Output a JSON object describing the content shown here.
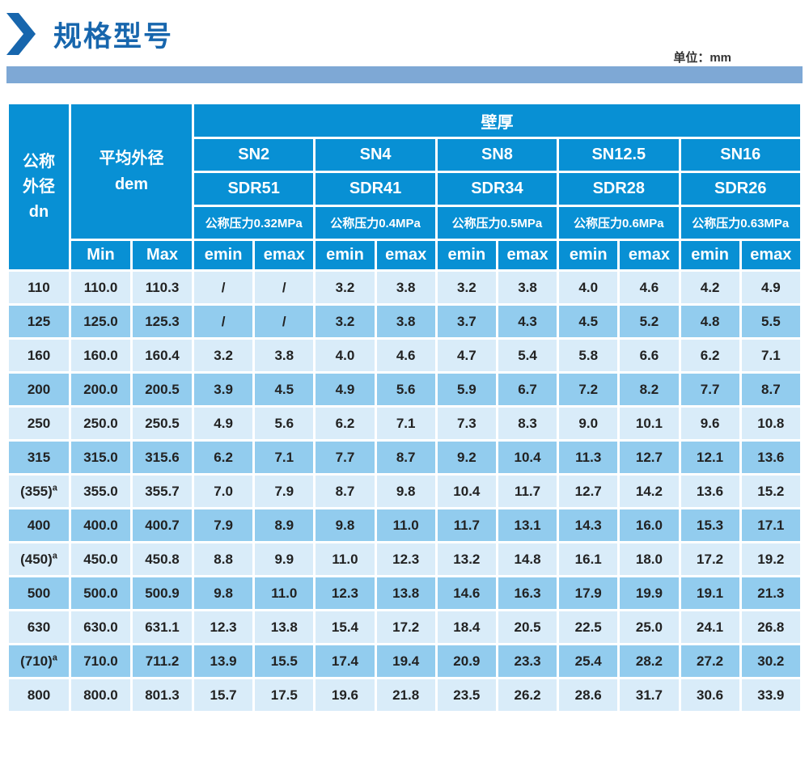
{
  "page": {
    "title": "规格型号",
    "unit_label": "单位：mm"
  },
  "colors": {
    "title_blue": "#1766ad",
    "bar_blue": "#7ea8d5",
    "header_blue": "#0890d4",
    "row_light": "#d9ecf9",
    "row_dark": "#92ccee"
  },
  "table": {
    "header": {
      "dn_lines": [
        "公称",
        "外径",
        "dn"
      ],
      "avg_lines": [
        "平均外径",
        "dem"
      ],
      "wall": "壁厚",
      "min": "Min",
      "max": "Max",
      "emin": "emin",
      "emax": "emax",
      "groups": [
        {
          "sn": "SN2",
          "sdr": "SDR51",
          "pressure": "公称压力0.32MPa"
        },
        {
          "sn": "SN4",
          "sdr": "SDR41",
          "pressure": "公称压力0.4MPa"
        },
        {
          "sn": "SN8",
          "sdr": "SDR34",
          "pressure": "公称压力0.5MPa"
        },
        {
          "sn": "SN12.5",
          "sdr": "SDR28",
          "pressure": "公称压力0.6MPa"
        },
        {
          "sn": "SN16",
          "sdr": "SDR26",
          "pressure": "公称压力0.63MPa"
        }
      ]
    },
    "rows": [
      {
        "dn": "110",
        "sup": "",
        "min": "110.0",
        "max": "110.3",
        "values": [
          "/",
          "/",
          "3.2",
          "3.8",
          "3.2",
          "3.8",
          "4.0",
          "4.6",
          "4.2",
          "4.9"
        ]
      },
      {
        "dn": "125",
        "sup": "",
        "min": "125.0",
        "max": "125.3",
        "values": [
          "/",
          "/",
          "3.2",
          "3.8",
          "3.7",
          "4.3",
          "4.5",
          "5.2",
          "4.8",
          "5.5"
        ]
      },
      {
        "dn": "160",
        "sup": "",
        "min": "160.0",
        "max": "160.4",
        "values": [
          "3.2",
          "3.8",
          "4.0",
          "4.6",
          "4.7",
          "5.4",
          "5.8",
          "6.6",
          "6.2",
          "7.1"
        ]
      },
      {
        "dn": "200",
        "sup": "",
        "min": "200.0",
        "max": "200.5",
        "values": [
          "3.9",
          "4.5",
          "4.9",
          "5.6",
          "5.9",
          "6.7",
          "7.2",
          "8.2",
          "7.7",
          "8.7"
        ]
      },
      {
        "dn": "250",
        "sup": "",
        "min": "250.0",
        "max": "250.5",
        "values": [
          "4.9",
          "5.6",
          "6.2",
          "7.1",
          "7.3",
          "8.3",
          "9.0",
          "10.1",
          "9.6",
          "10.8"
        ]
      },
      {
        "dn": "315",
        "sup": "",
        "min": "315.0",
        "max": "315.6",
        "values": [
          "6.2",
          "7.1",
          "7.7",
          "8.7",
          "9.2",
          "10.4",
          "11.3",
          "12.7",
          "12.1",
          "13.6"
        ]
      },
      {
        "dn": "(355)",
        "sup": "a",
        "min": "355.0",
        "max": "355.7",
        "values": [
          "7.0",
          "7.9",
          "8.7",
          "9.8",
          "10.4",
          "11.7",
          "12.7",
          "14.2",
          "13.6",
          "15.2"
        ]
      },
      {
        "dn": "400",
        "sup": "",
        "min": "400.0",
        "max": "400.7",
        "values": [
          "7.9",
          "8.9",
          "9.8",
          "11.0",
          "11.7",
          "13.1",
          "14.3",
          "16.0",
          "15.3",
          "17.1"
        ]
      },
      {
        "dn": "(450)",
        "sup": "a",
        "min": "450.0",
        "max": "450.8",
        "values": [
          "8.8",
          "9.9",
          "11.0",
          "12.3",
          "13.2",
          "14.8",
          "16.1",
          "18.0",
          "17.2",
          "19.2"
        ]
      },
      {
        "dn": "500",
        "sup": "",
        "min": "500.0",
        "max": "500.9",
        "values": [
          "9.8",
          "11.0",
          "12.3",
          "13.8",
          "14.6",
          "16.3",
          "17.9",
          "19.9",
          "19.1",
          "21.3"
        ]
      },
      {
        "dn": "630",
        "sup": "",
        "min": "630.0",
        "max": "631.1",
        "values": [
          "12.3",
          "13.8",
          "15.4",
          "17.2",
          "18.4",
          "20.5",
          "22.5",
          "25.0",
          "24.1",
          "26.8"
        ]
      },
      {
        "dn": "(710)",
        "sup": "a",
        "min": "710.0",
        "max": "711.2",
        "values": [
          "13.9",
          "15.5",
          "17.4",
          "19.4",
          "20.9",
          "23.3",
          "25.4",
          "28.2",
          "27.2",
          "30.2"
        ]
      },
      {
        "dn": "800",
        "sup": "",
        "min": "800.0",
        "max": "801.3",
        "values": [
          "15.7",
          "17.5",
          "19.6",
          "21.8",
          "23.5",
          "26.2",
          "28.6",
          "31.7",
          "30.6",
          "33.9"
        ]
      }
    ]
  }
}
